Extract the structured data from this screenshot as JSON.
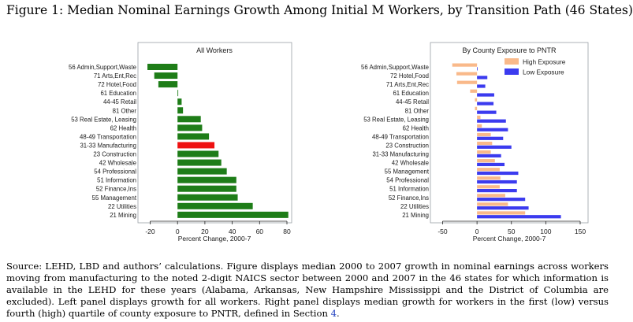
{
  "figure": {
    "title": "Figure 1:  Median Nominal Earnings Growth Among Initial M Workers, by Transition Path (46 States)",
    "source_text": "Source: LEHD, LBD and authors’ calculations. Figure displays median 2000 to 2007 growth in nominal earnings across workers moving from manufacturing to the noted 2-digit NAICS sector between 2000 and 2007 in the 46 states for which information is available in the LEHD for these years (Alabama, Arkansas, New Hampshire Mississippi and the District of Columbia are excluded). Left panel displays growth for all workers. Right panel displays median growth for workers in the first (low) versus fourth (high) quartile of county exposure to PNTR, defined in Section ",
    "source_section": "4",
    "source_end": "."
  },
  "colors": {
    "green": "#1e7d18",
    "red": "#ee1111",
    "high": "#f9b98a",
    "low": "#3b3bef",
    "frame": "#9aa0a6"
  },
  "chart_data": [
    {
      "type": "bar",
      "orientation": "horizontal",
      "title": "All Workers",
      "xlabel": "Percent Change, 2000-7",
      "xlim": [
        -25,
        82
      ],
      "xticks": [
        -20,
        0,
        20,
        40,
        60,
        80
      ],
      "highlight": "31-33 Manufacturing",
      "categories": [
        "56 Admin,Support,Waste",
        "71 Arts,Ent,Rec",
        "72 Hotel,Food",
        "61 Education",
        "44-45 Retail",
        "81 Other",
        "53 Real Estate, Leasing",
        "62 Health",
        "48-49 Transportation",
        "31-33 Manufacturing",
        "23 Construction",
        "42 Wholesale",
        "54 Professional",
        "51 Information",
        "52 Finance,Ins",
        "55 Management",
        "22 Utilities",
        "21 Mining"
      ],
      "values": [
        -22,
        -17,
        -14,
        0.5,
        3,
        4,
        17,
        18,
        23,
        27,
        30,
        32,
        36,
        43,
        43,
        44,
        55,
        81
      ]
    },
    {
      "type": "bar",
      "orientation": "horizontal",
      "title": "By County Exposure to PNTR",
      "xlabel": "Percent Change, 2000-7",
      "xlim": [
        -52,
        160
      ],
      "xticks": [
        -50,
        0,
        50,
        100,
        150
      ],
      "legend_position": "top-right",
      "categories": [
        "56 Admin,Support,Waste",
        "72 Hotel,Food",
        "71 Arts,Ent,Rec",
        "61 Education",
        "44-45 Retail",
        "81 Other",
        "53 Real Estate, Leasing",
        "62 Health",
        "48-49 Transportation",
        "23 Construction",
        "31-33 Manufacturing",
        "42 Wholesale",
        "55 Management",
        "54 Professional",
        "51 Information",
        "52 Finance,Ins",
        "22 Utilities",
        "21 Mining"
      ],
      "series": [
        {
          "name": "High Exposure",
          "values": [
            -36,
            -30,
            -29,
            -10,
            -3,
            -3,
            5,
            7,
            20,
            22,
            20,
            26,
            33,
            34,
            33,
            41,
            45,
            70
          ]
        },
        {
          "name": "Low Exposure",
          "values": [
            0,
            15,
            12,
            25,
            24,
            28,
            42,
            45,
            38,
            50,
            35,
            40,
            60,
            58,
            58,
            70,
            75,
            122
          ]
        }
      ]
    }
  ]
}
